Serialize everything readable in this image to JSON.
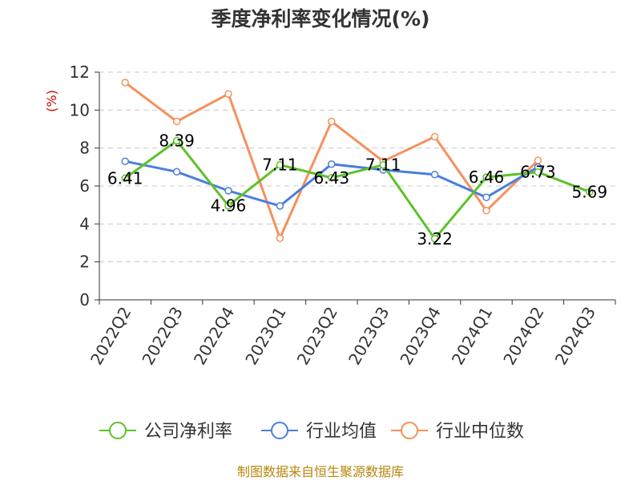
{
  "chart_data": {
    "type": "line",
    "title": "季度净利率变化情况(%)",
    "unit_label": "(%)",
    "categories": [
      "2022Q2",
      "2022Q3",
      "2022Q4",
      "2023Q1",
      "2023Q2",
      "2023Q3",
      "2023Q4",
      "2024Q1",
      "2024Q2",
      "2024Q3"
    ],
    "ylim": [
      0,
      12
    ],
    "yticks": [
      0,
      2,
      4,
      6,
      8,
      10,
      12
    ],
    "grid": true,
    "legend_position": "bottom",
    "series": [
      {
        "name": "公司净利率",
        "color": "#5dc22a",
        "values": [
          6.41,
          8.39,
          4.96,
          7.11,
          6.43,
          7.11,
          3.22,
          6.46,
          6.73,
          5.69
        ],
        "labels": [
          "6.41",
          "8.39",
          "4.96",
          "7.11",
          "6.43",
          "7.11",
          "3.22",
          "6.46",
          "6.73",
          "5.69"
        ]
      },
      {
        "name": "行业均值",
        "color": "#4a7fdc",
        "values": [
          7.3,
          6.75,
          5.75,
          4.95,
          7.15,
          6.85,
          6.6,
          5.4,
          7.0,
          null
        ]
      },
      {
        "name": "行业中位数",
        "color": "#f4915c",
        "values": [
          11.45,
          9.4,
          10.85,
          3.25,
          9.4,
          7.3,
          8.6,
          4.7,
          7.35,
          null
        ]
      }
    ]
  },
  "footer": {
    "source": "制图数据来自恒生聚源数据库"
  }
}
